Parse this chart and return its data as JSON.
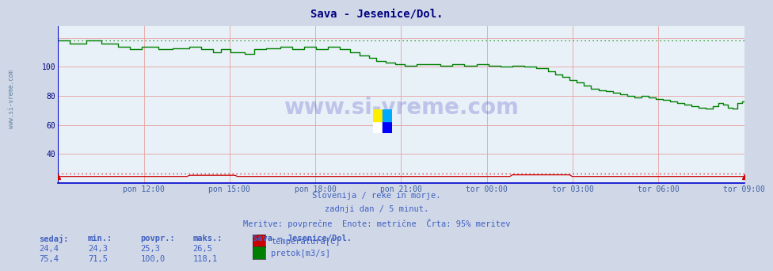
{
  "title": "Sava - Jesenice/Dol.",
  "title_color": "#000080",
  "bg_color": "#d0d8e8",
  "plot_bg_color": "#e8f0f8",
  "grid_color": "#e8a0a0",
  "text_color": "#4060c0",
  "subtitle1": "Slovenija / reke in morje.",
  "subtitle2": "zadnji dan / 5 minut.",
  "subtitle3": "Meritve: povprečne  Enote: metrične  Črta: 95% meritev",
  "legend_title": "Sava – Jesenice/Dol.",
  "legend_labels": [
    "temperatura[C]",
    "pretok[m3/s]"
  ],
  "legend_colors": [
    "#cc0000",
    "#008000"
  ],
  "table_headers": [
    "sedaj:",
    "min.:",
    "povpr.:",
    "maks.:"
  ],
  "table_row1": [
    "24,4",
    "24,3",
    "25,3",
    "26,5"
  ],
  "table_row2": [
    "75,4",
    "71,5",
    "100,0",
    "118,1"
  ],
  "xticklabels": [
    "pon 12:00",
    "pon 15:00",
    "pon 18:00",
    "pon 21:00",
    "tor 00:00",
    "tor 03:00",
    "tor 06:00",
    "tor 09:00"
  ],
  "yticks": [
    40,
    60,
    80,
    100
  ],
  "ylim": [
    20,
    128
  ],
  "temp_95": 26.5,
  "flow_95": 118.1,
  "temp_color": "#cc0000",
  "flow_color": "#008000",
  "border_color": "#0000cc",
  "watermark_color": "#0000aa",
  "watermark_alpha": 0.18,
  "n_points": 288
}
